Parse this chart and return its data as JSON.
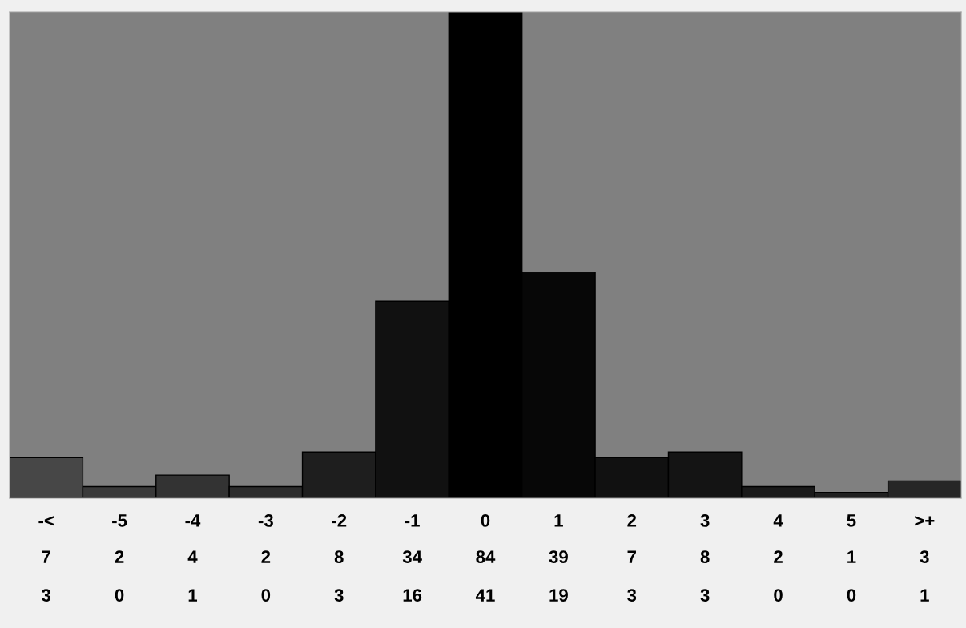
{
  "chart_data": {
    "type": "bar",
    "categories": [
      "-<",
      "-5",
      "-4",
      "-3",
      "-2",
      "-1",
      "0",
      "1",
      "2",
      "3",
      "4",
      "5",
      ">+"
    ],
    "series": [
      {
        "values": [
          7,
          2,
          4,
          2,
          8,
          34,
          84,
          39,
          7,
          8,
          2,
          1,
          3
        ],
        "colors": [
          "#474747",
          "#3a3a3a",
          "#333333",
          "#2c2c2c",
          "#1e1e1e",
          "#111111",
          "#000000",
          "#070707",
          "#111111",
          "#141414",
          "#1a1a1a",
          "#202020",
          "#262626"
        ]
      }
    ],
    "ylim": [
      0,
      84
    ],
    "data_labels": true,
    "tick_labels": "x",
    "grid": false,
    "legend": false,
    "annotations": [
      "3",
      "0",
      "1",
      "0",
      "3",
      "16",
      "41",
      "19",
      "3",
      "3",
      "0",
      "0",
      "1"
    ]
  }
}
